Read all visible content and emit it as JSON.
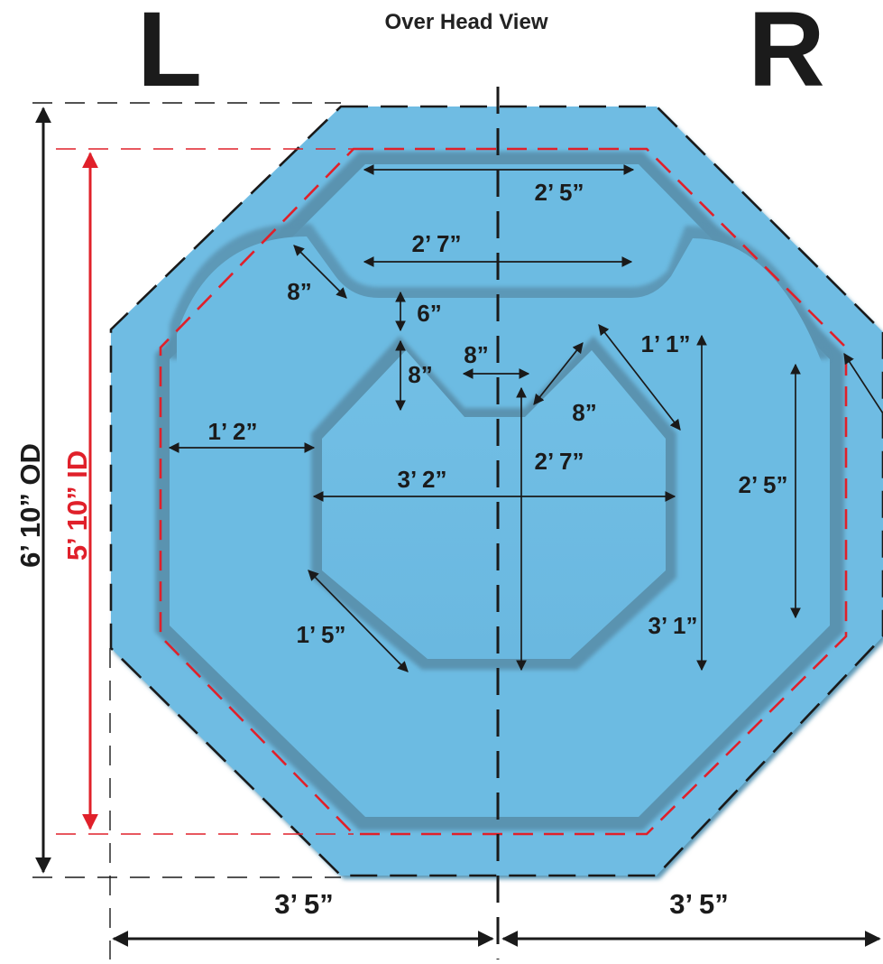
{
  "title": "Over Head View",
  "left_side_label": "L",
  "right_side_label": "R",
  "outer_diameter_label": "6’ 10” OD",
  "inner_diameter_label": "5’ 10” ID",
  "colors": {
    "shell": "#6fbce3",
    "shell_shadow": "#5a93b0",
    "id_line": "#e0202a",
    "ink": "#1b1b1b"
  },
  "dimensions": {
    "top_bench_width": "2’ 5”",
    "seat_back_width": "2’ 7”",
    "seat_edge_diag": "8”",
    "seat_to_floor_gap": "6”",
    "floor_notch_depth": "8”",
    "floor_notch_width": "8”",
    "floor_notch_diag": "8”",
    "floor_upper_right_diag": "1’ 1”",
    "left_bench_depth": "1’ 2”",
    "floor_width": "3’ 2”",
    "floor_notch_to_bottom": "2’ 7”",
    "right_bench_length": "2’ 5”",
    "floor_lower_left_diag": "1’ 5”",
    "right_floor_height": "3’ 1”",
    "left_half_width": "3’ 5”",
    "right_half_width": "3’ 5”"
  }
}
